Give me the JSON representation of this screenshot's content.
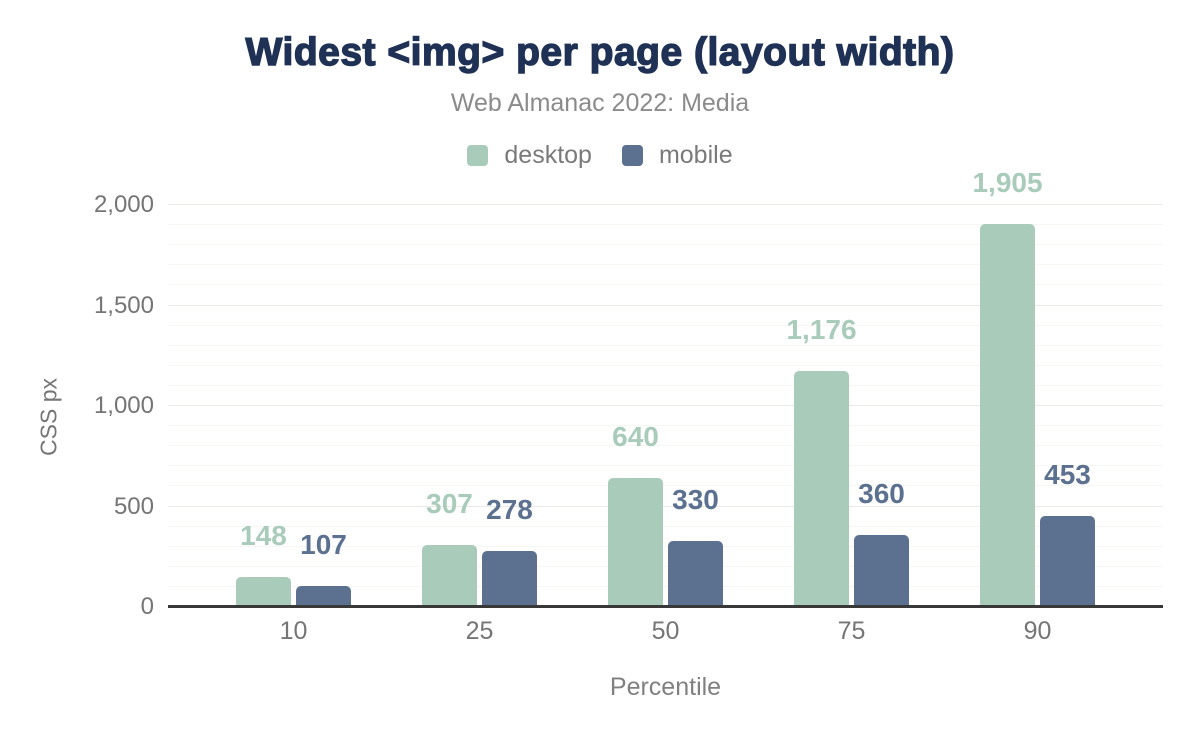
{
  "title": "Widest <img> per page (layout width)",
  "subtitle": "Web Almanac 2022: Media",
  "chart_data": {
    "type": "bar",
    "title": "Widest <img> per page (layout width)",
    "subtitle": "Web Almanac 2022: Media",
    "categories": [
      "10",
      "25",
      "50",
      "75",
      "90"
    ],
    "series": [
      {
        "name": "desktop",
        "color": "#a9cbba",
        "values": [
          148,
          307,
          640,
          1176,
          1905
        ],
        "value_labels": [
          "148",
          "307",
          "640",
          "1,176",
          "1,905"
        ]
      },
      {
        "name": "mobile",
        "color": "#5c7090",
        "values": [
          107,
          278,
          330,
          360,
          453
        ],
        "value_labels": [
          "107",
          "278",
          "330",
          "360",
          "453"
        ]
      }
    ],
    "xlabel": "Percentile",
    "ylabel": "CSS px",
    "ylim": [
      0,
      2000
    ],
    "yticks": [
      0,
      500,
      1000,
      1500,
      2000
    ],
    "ytick_labels": [
      "0",
      "500",
      "1,000",
      "1,500",
      "2,000"
    ],
    "minor_grid_step": 100,
    "major_grid_step": 500,
    "grid": true,
    "legend_position": "top-center",
    "colors": {
      "title": "#1f3155",
      "subtitle": "#8b8b8b",
      "axis_line": "#383838",
      "tick_label": "#757575",
      "major_grid": "#eaeae7",
      "minor_grid": "#f6f6f3",
      "background": "#ffffff"
    }
  }
}
